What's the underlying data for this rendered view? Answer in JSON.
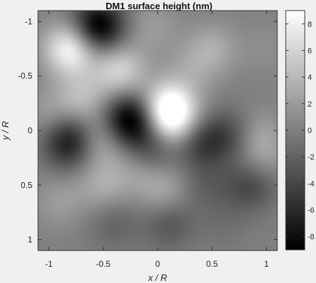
{
  "chart_data": {
    "type": "heatmap",
    "title": "DM1 surface height (nm)",
    "xlabel": "x / R",
    "ylabel": "y / R",
    "xlim": [
      -1.1,
      1.1
    ],
    "ylim": [
      -1.1,
      1.1
    ],
    "y_axis_direction": "down",
    "x_ticks": [
      -1,
      -0.5,
      0,
      0.5,
      1
    ],
    "x_tick_labels": [
      "-1",
      "-0.5",
      "0",
      "0.5",
      "1"
    ],
    "y_ticks": [
      -1,
      -0.5,
      0,
      0.5,
      1
    ],
    "y_tick_labels": [
      "-1",
      "-0.5",
      "0",
      "0.5",
      "1"
    ],
    "colorbar": {
      "colormap": "gray",
      "range": [
        -9,
        9
      ],
      "ticks": [
        8,
        6,
        4,
        2,
        0,
        -2,
        -4,
        -6,
        -8
      ],
      "tick_labels": [
        "8",
        "6",
        "4",
        "2",
        "0",
        "-2",
        "-4",
        "-6",
        "-8"
      ]
    },
    "field_features": [
      {
        "x": -0.55,
        "y": -0.95,
        "h": -10
      },
      {
        "x": -0.8,
        "y": -0.75,
        "h": 9
      },
      {
        "x": -0.35,
        "y": -0.55,
        "h": 6
      },
      {
        "x": 0.1,
        "y": -0.2,
        "h": 10
      },
      {
        "x": 0.15,
        "y": -0.05,
        "h": 5
      },
      {
        "x": -0.25,
        "y": -0.1,
        "h": -10
      },
      {
        "x": -0.55,
        "y": 0.1,
        "h": 4
      },
      {
        "x": -0.8,
        "y": 0.1,
        "h": -8
      },
      {
        "x": -1.0,
        "y": -0.15,
        "h": 2
      },
      {
        "x": -0.05,
        "y": 0.15,
        "h": -4
      },
      {
        "x": 0.4,
        "y": 0.1,
        "h": -5
      },
      {
        "x": 0.7,
        "y": 0.05,
        "h": -4
      },
      {
        "x": 0.9,
        "y": 0.05,
        "h": 3
      },
      {
        "x": 0.5,
        "y": -0.75,
        "h": 3
      },
      {
        "x": -0.7,
        "y": -0.3,
        "h": 4
      },
      {
        "x": -0.5,
        "y": 0.5,
        "h": 3
      },
      {
        "x": 0.05,
        "y": 0.55,
        "h": 3
      },
      {
        "x": 0.85,
        "y": 0.5,
        "h": -4
      },
      {
        "x": 0.45,
        "y": 0.5,
        "h": -2
      },
      {
        "x": -0.9,
        "y": 0.65,
        "h": 2
      },
      {
        "x": -0.4,
        "y": 0.85,
        "h": -2
      },
      {
        "x": 0.1,
        "y": 0.85,
        "h": -3
      },
      {
        "x": 0.6,
        "y": 0.85,
        "h": -1
      },
      {
        "x": 0.3,
        "y": -0.55,
        "h": 2
      },
      {
        "x": -0.05,
        "y": -0.95,
        "h": 2
      },
      {
        "x": 1.0,
        "y": -0.75,
        "h": 1
      },
      {
        "x": 0.95,
        "y": 0.25,
        "h": 2
      },
      {
        "x": -0.2,
        "y": 0.35,
        "h": 2
      }
    ]
  }
}
